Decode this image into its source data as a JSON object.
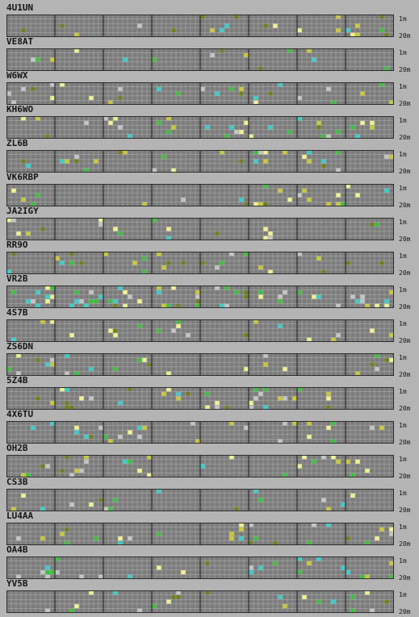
{
  "band_labels": {
    "top": "1m",
    "bottom": "20m"
  },
  "colors": {
    "background": "#b4b4b4",
    "grid_fill": "#7c7c7c",
    "grid_line": "#a8a8a8",
    "hour_divider": "#2e2e2e",
    "legend_signal_levels": [
      "#6f7f22",
      "#c8c83a",
      "#3ec03e",
      "#3ccccc",
      "#c4c4c4",
      "#f0f090"
    ]
  },
  "stations": [
    {
      "call": "4U1UN"
    },
    {
      "call": "VE8AT"
    },
    {
      "call": "W6WX"
    },
    {
      "call": "KH6WO"
    },
    {
      "call": "ZL6B"
    },
    {
      "call": "VK6RBP"
    },
    {
      "call": "JA2IGY"
    },
    {
      "call": "RR9O"
    },
    {
      "call": "VR2B"
    },
    {
      "call": "4S7B"
    },
    {
      "call": "ZS6DN"
    },
    {
      "call": "5Z4B"
    },
    {
      "call": "4X6TU"
    },
    {
      "call": "OH2B"
    },
    {
      "call": "CS3B"
    },
    {
      "call": "LU4AA"
    },
    {
      "call": "OA4B"
    },
    {
      "call": "YV5B"
    }
  ]
}
